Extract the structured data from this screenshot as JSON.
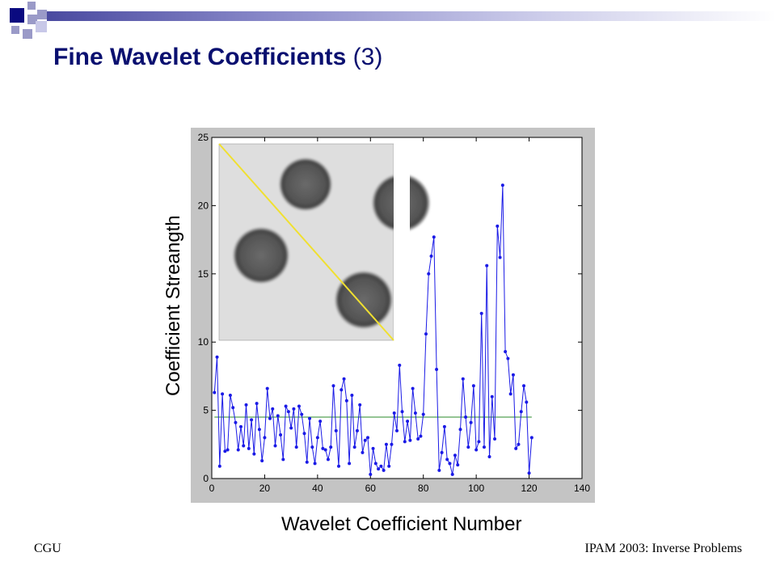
{
  "slide": {
    "title_bold": "Fine Wavelet Coefficients",
    "title_rest": " (3)",
    "footer_left": "CGU",
    "footer_right": "IPAM 2003: Inverse Problems"
  },
  "colors": {
    "title": "#0a1070",
    "series": "#1a1ae6",
    "threshold": "#2a8a2a",
    "overlay_line": "#f0e030"
  },
  "chart_data": {
    "type": "line",
    "title": "",
    "xlabel": "Wavelet Coefficient Number",
    "ylabel": "Coefficient Streangth",
    "xlim": [
      0,
      140
    ],
    "ylim": [
      0,
      25
    ],
    "xticks": [
      0,
      20,
      40,
      60,
      80,
      100,
      120,
      140
    ],
    "yticks": [
      0,
      5,
      10,
      15,
      20,
      25
    ],
    "grid": false,
    "legend": "none",
    "series": [
      {
        "x": [
          1,
          2,
          3,
          4,
          5,
          6,
          7,
          8,
          9,
          10,
          11,
          12,
          13,
          14,
          15,
          16,
          17,
          18,
          19,
          20,
          21,
          22,
          23,
          24,
          25,
          26,
          27,
          28,
          29,
          30,
          31,
          32,
          33,
          34,
          35,
          36,
          37,
          38,
          39,
          40,
          41,
          42,
          43,
          44,
          45,
          46,
          47,
          48,
          49,
          50,
          51,
          52,
          53,
          54,
          55,
          56,
          57,
          58,
          59,
          60,
          61,
          62,
          63,
          64,
          65,
          66,
          67,
          68,
          69,
          70,
          71,
          72,
          73,
          74,
          75,
          76,
          77,
          78,
          79,
          80,
          81,
          82,
          83,
          84,
          85,
          86,
          87,
          88,
          89,
          90,
          91,
          92,
          93,
          94,
          95,
          96,
          97,
          98,
          99,
          100,
          101,
          102,
          103,
          104,
          105,
          106,
          107,
          108,
          109,
          110,
          111,
          112,
          113,
          114,
          115,
          116,
          117,
          118,
          119,
          120,
          121
        ],
        "y": [
          6.3,
          8.9,
          0.9,
          6.2,
          2.0,
          2.1,
          6.1,
          5.2,
          4.1,
          2.1,
          3.8,
          2.4,
          5.4,
          2.2,
          4.3,
          1.8,
          5.5,
          3.6,
          1.3,
          3.0,
          6.6,
          4.4,
          5.1,
          2.4,
          4.6,
          3.2,
          1.4,
          5.3,
          4.9,
          3.7,
          5.1,
          2.3,
          5.3,
          4.7,
          3.3,
          1.2,
          4.4,
          2.3,
          1.1,
          3.0,
          4.2,
          2.2,
          2.1,
          1.4,
          2.3,
          6.8,
          3.5,
          0.9,
          6.5,
          7.3,
          5.7,
          1.1,
          6.1,
          2.3,
          3.5,
          5.4,
          1.9,
          2.8,
          3.0,
          0.3,
          2.2,
          1.1,
          0.7,
          0.9,
          0.6,
          2.5,
          0.9,
          2.5,
          4.8,
          3.5,
          8.3,
          4.9,
          2.7,
          4.2,
          2.8,
          6.6,
          4.8,
          2.9,
          3.1,
          4.7,
          10.6,
          15.0,
          16.3,
          17.7,
          8.0,
          0.6,
          1.9,
          3.8,
          1.4,
          1.1,
          0.3,
          1.7,
          1.0,
          3.6,
          7.3,
          4.5,
          2.3,
          4.1,
          6.8,
          2.1,
          2.7,
          12.1,
          2.3,
          15.6,
          1.6,
          6.0,
          2.9,
          18.5,
          16.2,
          21.5,
          9.3,
          8.8,
          6.2,
          7.6,
          2.2,
          2.5,
          4.9,
          6.8,
          5.6,
          0.4,
          3.0
        ]
      },
      {
        "y_constant": 4.5,
        "x_range": [
          1,
          121
        ]
      }
    ],
    "inset": {
      "description_free": true,
      "disks": 4
    }
  }
}
